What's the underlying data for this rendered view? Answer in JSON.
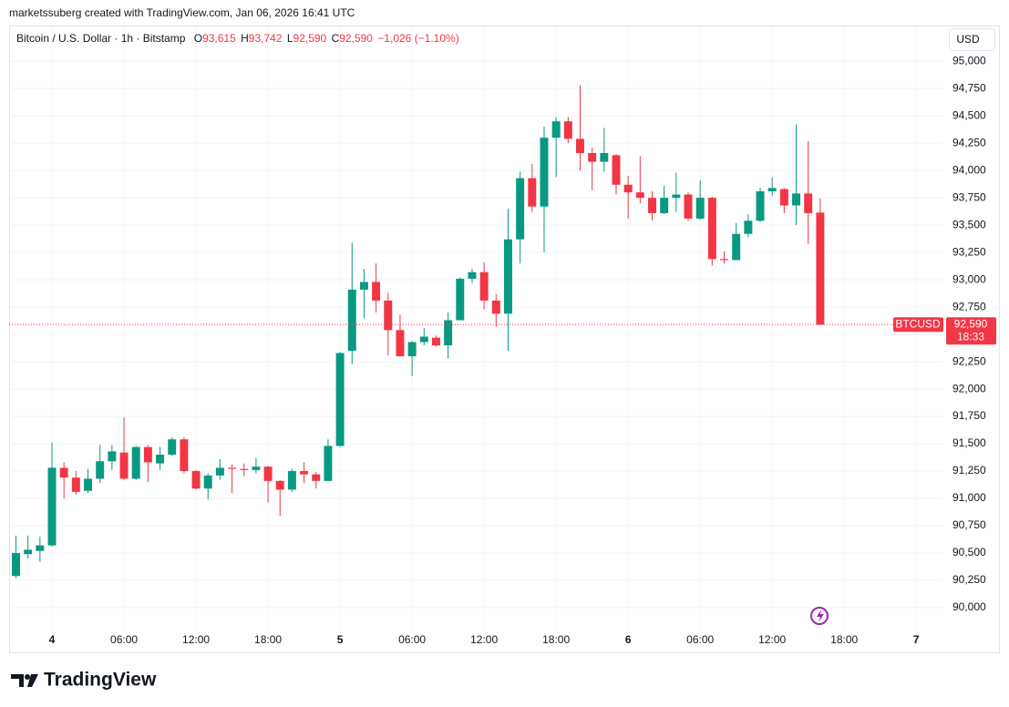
{
  "chart_data": {
    "type": "candlestick",
    "attribution": "marketssuberg created with TradingView.com, Jan 06, 2026 16:41 UTC",
    "title": "Bitcoin / U.S. Dollar · 1h · Bitstamp",
    "ohlc_labels": [
      "O",
      "H",
      "L",
      "C"
    ],
    "ohlc_values": [
      "93,615",
      "93,742",
      "92,590",
      "92,590"
    ],
    "change": "−1,026 (−1.10%)",
    "currency": "USD",
    "brand": "TradingView",
    "symbol": "BTCUSD",
    "last_price": {
      "value": 92590,
      "label": "92,590"
    },
    "countdown": "18:33",
    "up_color": "#089981",
    "down_color": "#f23645",
    "grid": true,
    "xlim": [
      -3.57,
      74.26
    ],
    "ylim": [
      89825,
      95310
    ],
    "xticks": [
      {
        "value": 0,
        "label": "4"
      },
      {
        "value": 6,
        "label": "06:00"
      },
      {
        "value": 12,
        "label": "12:00"
      },
      {
        "value": 18,
        "label": "18:00"
      },
      {
        "value": 24,
        "label": "5"
      },
      {
        "value": 30,
        "label": "06:00"
      },
      {
        "value": 36,
        "label": "12:00"
      },
      {
        "value": 42,
        "label": "18:00"
      },
      {
        "value": 48,
        "label": "6"
      },
      {
        "value": 54,
        "label": "06:00"
      },
      {
        "value": 60,
        "label": "12:00"
      },
      {
        "value": 66,
        "label": "18:00"
      },
      {
        "value": 72,
        "label": "7"
      }
    ],
    "yticks": [
      {
        "value": 90000,
        "label": "90,000"
      },
      {
        "value": 90250,
        "label": "90,250"
      },
      {
        "value": 90500,
        "label": "90,500"
      },
      {
        "value": 90750,
        "label": "90,750"
      },
      {
        "value": 91000,
        "label": "91,000"
      },
      {
        "value": 91250,
        "label": "91,250"
      },
      {
        "value": 91500,
        "label": "91,500"
      },
      {
        "value": 91750,
        "label": "91,750"
      },
      {
        "value": 92000,
        "label": "92,000"
      },
      {
        "value": 92250,
        "label": "92,250"
      },
      {
        "value": 92500,
        "label": "92,500"
      },
      {
        "value": 92750,
        "label": "92,750"
      },
      {
        "value": 93000,
        "label": "93,000"
      },
      {
        "value": 93250,
        "label": "93,250"
      },
      {
        "value": 93500,
        "label": "93,500"
      },
      {
        "value": 93750,
        "label": "93,750"
      },
      {
        "value": 94000,
        "label": "94,000"
      },
      {
        "value": 94250,
        "label": "94,250"
      },
      {
        "value": 94500,
        "label": "94,500"
      },
      {
        "value": 94750,
        "label": "94,750"
      },
      {
        "value": 95000,
        "label": "95,000"
      }
    ],
    "x": [
      -3,
      -2,
      -1,
      0,
      1,
      2,
      3,
      4,
      5,
      6,
      7,
      8,
      9,
      10,
      11,
      12,
      13,
      14,
      15,
      16,
      17,
      18,
      19,
      20,
      21,
      22,
      23,
      24,
      25,
      26,
      27,
      28,
      29,
      30,
      31,
      32,
      33,
      34,
      35,
      36,
      37,
      38,
      39,
      40,
      41,
      42,
      43,
      44,
      45,
      46,
      47,
      48,
      49,
      50,
      51,
      52,
      53,
      54,
      55,
      56,
      57,
      58,
      59,
      60,
      61,
      62,
      63,
      64
    ],
    "open": [
      90290,
      90490,
      90520,
      90570,
      91280,
      91190,
      91070,
      91180,
      91340,
      91420,
      91180,
      91470,
      91320,
      91400,
      91540,
      91250,
      91090,
      91210,
      91280,
      91270,
      91260,
      91290,
      91160,
      91080,
      91250,
      91220,
      91160,
      91480,
      92350,
      92910,
      92980,
      92810,
      92540,
      92300,
      92430,
      92470,
      92400,
      92630,
      93010,
      93070,
      92810,
      92690,
      93370,
      93930,
      93670,
      94300,
      94450,
      94290,
      94160,
      94080,
      94140,
      93870,
      93800,
      93750,
      93610,
      93750,
      93780,
      93560,
      93750,
      93190,
      93180,
      93420,
      93540,
      93810,
      93830,
      93680,
      93790,
      93615
    ],
    "high": [
      90660,
      90660,
      90650,
      91510,
      91330,
      91250,
      91270,
      91490,
      91490,
      91740,
      91480,
      91490,
      91470,
      91560,
      91560,
      91260,
      91230,
      91360,
      91310,
      91320,
      91370,
      91300,
      91170,
      91270,
      91330,
      91240,
      91540,
      92340,
      93340,
      93100,
      93150,
      92880,
      92680,
      92440,
      92560,
      92490,
      92700,
      93020,
      93100,
      93160,
      92870,
      93650,
      93990,
      94060,
      94400,
      94490,
      94490,
      94780,
      94210,
      94390,
      94150,
      93950,
      94130,
      93810,
      93860,
      93980,
      93800,
      93910,
      93760,
      93260,
      93520,
      93600,
      93840,
      93940,
      93840,
      94420,
      94270,
      93742
    ],
    "low": [
      90270,
      90450,
      90420,
      90560,
      91000,
      91030,
      91050,
      91140,
      91260,
      91170,
      91170,
      91150,
      91260,
      91390,
      91230,
      91080,
      90990,
      91170,
      91050,
      91200,
      91230,
      90960,
      90840,
      91060,
      91140,
      91090,
      91160,
      91470,
      92230,
      92650,
      92700,
      92310,
      92300,
      92120,
      92400,
      92390,
      92280,
      92630,
      92970,
      92730,
      92570,
      92350,
      93150,
      93620,
      93250,
      93940,
      94250,
      94000,
      93820,
      93990,
      93780,
      93560,
      93700,
      93540,
      93600,
      93620,
      93540,
      93550,
      93130,
      93150,
      93180,
      93390,
      93530,
      93770,
      93610,
      93500,
      93330,
      92590
    ],
    "close": [
      90500,
      90530,
      90570,
      91280,
      91190,
      91060,
      91180,
      91340,
      91430,
      91180,
      91470,
      91330,
      91400,
      91540,
      91250,
      91090,
      91210,
      91280,
      91270,
      91260,
      91290,
      91160,
      91080,
      91250,
      91220,
      91160,
      91480,
      92330,
      92910,
      92980,
      92810,
      92540,
      92300,
      92430,
      92480,
      92400,
      92630,
      93010,
      93070,
      92810,
      92690,
      93370,
      93930,
      93670,
      94300,
      94450,
      94290,
      94160,
      94080,
      94160,
      93870,
      93800,
      93750,
      93610,
      93750,
      93780,
      93560,
      93750,
      93190,
      93180,
      93420,
      93540,
      93810,
      93840,
      93680,
      93790,
      93610,
      92590
    ]
  }
}
